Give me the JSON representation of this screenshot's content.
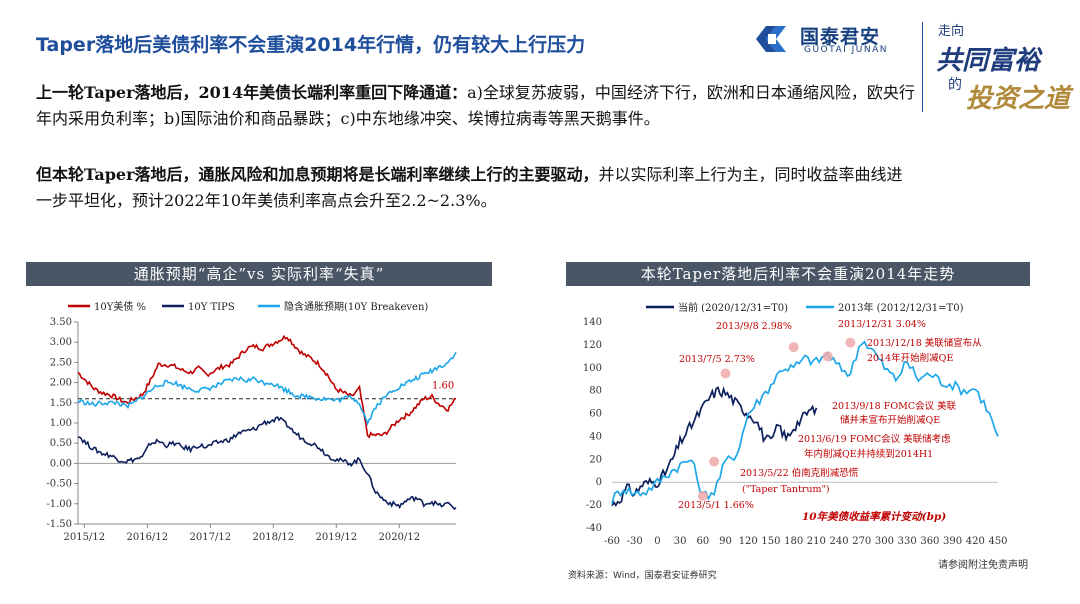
{
  "title": "Taper落地后美债利率不会重演2014年行情，仍有较大上行压力",
  "brand": {
    "name_cn": "国泰君安",
    "name_en": "GUOTAI JUNAN",
    "slogan_line1": "走向",
    "slogan_line2": "共同富裕",
    "slogan_line3": "的",
    "slogan_line4": "投资之道"
  },
  "para1": {
    "lead": "上一轮Taper落地后，2014年美债长端利率重回下降通道：",
    "body": "a)全球复苏疲弱，中国经济下行，欧洲和日本通缩风险，欧央行年内采用负利率；b)国际油价和商品暴跌；c)中东地缘冲突、埃博拉病毒等黑天鹅事件。"
  },
  "para2": {
    "lead": "但本轮Taper落地后，通胀风险和加息预期将是长端利率继续上行的主要驱动，",
    "body": "并以实际利率上行为主，同时收益率曲线进一步平坦化，预计2022年10年美债利率高点会升至2.2~2.3%。"
  },
  "left_chart_header": "通胀预期“高企”vs 实际利率“失真”",
  "right_chart_header": "本轮Taper落地后利率不会重演2014年走势",
  "source": "资料来源：Wind，国泰君安证券研究",
  "disclaimer": "请参阅附注免责声明",
  "colors": {
    "red": "#c00000",
    "navy": "#0d1f5c",
    "cyan": "#1ea7e8",
    "header_bg": "#4a5566",
    "title_blue": "#1f4e9c"
  },
  "chart_data": [
    {
      "type": "line",
      "title": "通胀预期“高企”vs 实际利率“失真”",
      "legend": [
        "10Y美债 %",
        "10Y TIPS",
        "隐含通胀预期(10Y Breakeven)"
      ],
      "x_labels": [
        "2015/12",
        "2016/12",
        "2017/12",
        "2018/12",
        "2019/12",
        "2020/12"
      ],
      "y_ticks": [
        "3.50",
        "3.00",
        "2.50",
        "2.00",
        "1.50",
        "1.00",
        "0.50",
        "0.00",
        "-0.50",
        "-1.00",
        "-1.50"
      ],
      "ylim": [
        -1.5,
        3.5
      ],
      "reference_line": 1.6,
      "annotation": "1.60",
      "series": [
        {
          "name": "10Y美债 %",
          "color": "#c00000",
          "values": [
            2.25,
            2.05,
            1.85,
            1.75,
            1.7,
            1.6,
            1.5,
            1.6,
            1.7,
            2.05,
            2.45,
            2.45,
            2.4,
            2.3,
            2.25,
            2.35,
            2.2,
            2.3,
            2.4,
            2.45,
            2.65,
            2.85,
            2.9,
            2.85,
            2.95,
            3.05,
            3.15,
            2.9,
            2.7,
            2.6,
            2.45,
            2.2,
            1.85,
            1.75,
            1.65,
            1.85,
            0.7,
            0.7,
            0.7,
            0.9,
            1.1,
            1.2,
            1.4,
            1.6,
            1.65,
            1.45,
            1.35,
            1.6
          ]
        },
        {
          "name": "10Y TIPS",
          "color": "#0d1f5c",
          "values": [
            0.7,
            0.5,
            0.35,
            0.25,
            0.2,
            0.1,
            0.05,
            0.1,
            0.15,
            0.5,
            0.55,
            0.45,
            0.5,
            0.4,
            0.35,
            0.45,
            0.4,
            0.5,
            0.55,
            0.6,
            0.75,
            0.8,
            0.85,
            1.0,
            1.05,
            1.1,
            0.95,
            0.75,
            0.6,
            0.5,
            0.4,
            0.2,
            0.1,
            0.05,
            0.0,
            0.1,
            -0.25,
            -0.7,
            -0.9,
            -1.0,
            -1.05,
            -0.9,
            -0.85,
            -1.0,
            -0.95,
            -1.05,
            -1.0,
            -1.1
          ]
        },
        {
          "name": "隐含通胀预期(10Y Breakeven)",
          "color": "#1ea7e8",
          "values": [
            1.55,
            1.5,
            1.45,
            1.5,
            1.5,
            1.5,
            1.4,
            1.5,
            1.65,
            1.8,
            1.95,
            2.0,
            2.0,
            1.9,
            1.85,
            1.8,
            1.85,
            1.9,
            2.0,
            2.05,
            2.1,
            2.05,
            2.1,
            2.0,
            2.0,
            1.9,
            1.8,
            1.7,
            1.65,
            1.65,
            1.6,
            1.6,
            1.55,
            1.6,
            1.65,
            1.5,
            1.0,
            1.4,
            1.6,
            1.8,
            1.9,
            2.0,
            2.1,
            2.2,
            2.3,
            2.4,
            2.5,
            2.75
          ]
        }
      ]
    },
    {
      "type": "line",
      "title": "本轮Taper落地后利率不会重演2014年走势",
      "legend": [
        "当前 (2020/12/31=T0)",
        "2013年 (2012/12/31=T0)"
      ],
      "x_ticks": [
        -60,
        -30,
        0,
        30,
        60,
        90,
        120,
        150,
        180,
        210,
        240,
        270,
        300,
        330,
        360,
        390,
        420,
        450
      ],
      "xlim": [
        -60,
        450
      ],
      "y_ticks": [
        140,
        120,
        100,
        80,
        60,
        40,
        20,
        0,
        -20,
        -40
      ],
      "ylim": [
        -40,
        140
      ],
      "xlabel": "10年美债收益率累计变动(bp)",
      "series": [
        {
          "name": "当前 (2020/12/31=T0)",
          "color": "#0d1f5c",
          "x": [
            -60,
            -50,
            -40,
            -30,
            -20,
            -10,
            0,
            10,
            20,
            30,
            40,
            50,
            60,
            70,
            80,
            90,
            100,
            110,
            120,
            130,
            140,
            150,
            160,
            170,
            180,
            190,
            200,
            210
          ],
          "values": [
            -20,
            -15,
            -5,
            -10,
            -2,
            0,
            0,
            8,
            20,
            35,
            45,
            55,
            65,
            75,
            80,
            78,
            72,
            65,
            60,
            55,
            40,
            35,
            50,
            38,
            48,
            55,
            62,
            65
          ]
        },
        {
          "name": "2013年 (2012/12/31=T0)",
          "color": "#1ea7e8",
          "x": [
            -60,
            -45,
            -30,
            -15,
            0,
            15,
            30,
            45,
            60,
            75,
            90,
            105,
            120,
            135,
            150,
            165,
            180,
            195,
            210,
            225,
            240,
            255,
            270,
            285,
            300,
            315,
            330,
            345,
            360,
            375,
            390,
            405,
            420,
            435,
            450
          ],
          "values": [
            -15,
            -5,
            -10,
            -8,
            0,
            8,
            15,
            20,
            -12,
            -8,
            18,
            25,
            60,
            72,
            85,
            100,
            100,
            108,
            105,
            112,
            100,
            95,
            125,
            115,
            100,
            90,
            105,
            90,
            95,
            88,
            85,
            80,
            82,
            65,
            40
          ]
        }
      ],
      "markers": [
        {
          "x": 60,
          "y": -12
        },
        {
          "x": 75,
          "y": 18
        },
        {
          "x": 90,
          "y": 95
        },
        {
          "x": 180,
          "y": 118
        },
        {
          "x": 225,
          "y": 110
        },
        {
          "x": 255,
          "y": 122
        }
      ],
      "annotations": [
        "2013/9/8 2.98%",
        "2013/12/31 3.04%",
        "2013/12/18 美联储宣布从",
        "2014年开始削减QE",
        "2013/7/5 2.73%",
        "2013/9/18 FOMC会议 美联",
        "储并未宣布开始削减QE",
        "2013/6/19 FOMC会议 美联储考虑",
        "年内削减QE并持续到2014H1",
        "2013/5/22 伯南克削减恐慌",
        "(\"Taper Tantrum\")",
        "2013/5/1 1.66%"
      ]
    }
  ]
}
